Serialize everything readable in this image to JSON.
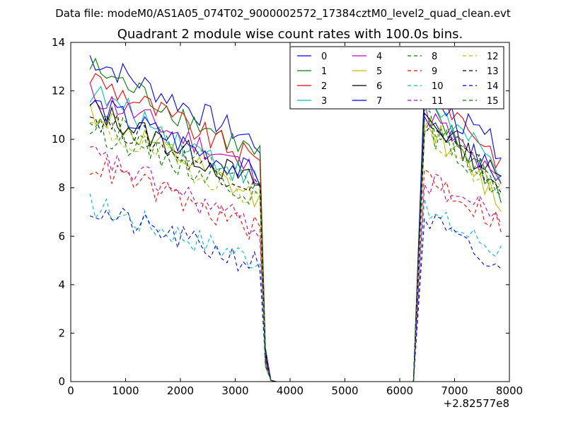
{
  "suptitle": "Data file: modeM0/AS1A05_074T02_9000002572_17384cztM0_level2_quad_clean.evt",
  "chart_data": {
    "type": "line",
    "title": "Quadrant 2 module wise count rates with 100.0s bins.",
    "xlabel": "",
    "ylabel": "",
    "xlim": [
      0,
      8000
    ],
    "ylim": [
      0,
      14
    ],
    "x_offset_label": "+2.82577e8",
    "xticks": [
      0,
      1000,
      2000,
      3000,
      4000,
      5000,
      6000,
      7000,
      8000
    ],
    "yticks": [
      0,
      2,
      4,
      6,
      8,
      10,
      12,
      14
    ],
    "legend_position": "top-right",
    "legend_columns": 4,
    "segments": {
      "first": {
        "x_start": 350,
        "x_end": 3450,
        "step": 100
      },
      "gap_x": [
        3550,
        3650,
        3750,
        6250
      ],
      "gap_values": [
        1.0,
        0.05,
        0.0,
        0.0
      ],
      "second": {
        "x_start": 6450,
        "x_end": 7850,
        "step": 100
      }
    },
    "series": [
      {
        "name": "0",
        "color": "#0000ff",
        "dash": "solid",
        "start1": 13.4,
        "end1": 9.8,
        "start2": 11.0,
        "end2": 8.4
      },
      {
        "name": "1",
        "color": "#008000",
        "dash": "solid",
        "start1": 13.0,
        "end1": 9.3,
        "start2": 11.4,
        "end2": 7.8
      },
      {
        "name": "2",
        "color": "#ff0000",
        "dash": "solid",
        "start1": 12.6,
        "end1": 9.0,
        "start2": 12.5,
        "end2": 9.1
      },
      {
        "name": "3",
        "color": "#00bfbf",
        "dash": "solid",
        "start1": 12.0,
        "end1": 8.2,
        "start2": 11.8,
        "end2": 8.6
      },
      {
        "name": "4",
        "color": "#bf00bf",
        "dash": "solid",
        "start1": 11.9,
        "end1": 8.6,
        "start2": 11.2,
        "end2": 8.0
      },
      {
        "name": "5",
        "color": "#bfbf00",
        "dash": "solid",
        "start1": 11.2,
        "end1": 7.4,
        "start2": 10.8,
        "end2": 7.4
      },
      {
        "name": "6",
        "color": "#000000",
        "dash": "solid",
        "start1": 11.3,
        "end1": 8.1,
        "start2": 11.0,
        "end2": 8.3
      },
      {
        "name": "7",
        "color": "#0000ff",
        "dash": "solid",
        "start1": 11.5,
        "end1": 8.4,
        "start2": 11.7,
        "end2": 9.6
      },
      {
        "name": "8",
        "color": "#008000",
        "dash": "dashed",
        "start1": 10.5,
        "end1": 7.7,
        "start2": 10.5,
        "end2": 7.9
      },
      {
        "name": "9",
        "color": "#ff0000",
        "dash": "dashed",
        "start1": 9.0,
        "end1": 6.2,
        "start2": 8.6,
        "end2": 6.5
      },
      {
        "name": "10",
        "color": "#00bfbf",
        "dash": "dashed",
        "start1": 7.3,
        "end1": 5.0,
        "start2": 7.0,
        "end2": 5.4
      },
      {
        "name": "11",
        "color": "#bf00bf",
        "dash": "dashed",
        "start1": 9.4,
        "end1": 6.3,
        "start2": 8.3,
        "end2": 6.8
      },
      {
        "name": "12",
        "color": "#bfbf00",
        "dash": "dashed",
        "start1": 10.6,
        "end1": 7.6,
        "start2": 10.3,
        "end2": 7.7
      },
      {
        "name": "13",
        "color": "#000000",
        "dash": "dashed",
        "start1": 11.0,
        "end1": 8.0,
        "start2": 10.7,
        "end2": 8.1
      },
      {
        "name": "14",
        "color": "#0000ff",
        "dash": "dashed",
        "start1": 7.1,
        "end1": 4.8,
        "start2": 6.8,
        "end2": 4.4
      },
      {
        "name": "15",
        "color": "#008000",
        "dash": "dashed",
        "start1": 11.1,
        "end1": 8.2,
        "start2": 10.9,
        "end2": 8.0
      }
    ]
  }
}
